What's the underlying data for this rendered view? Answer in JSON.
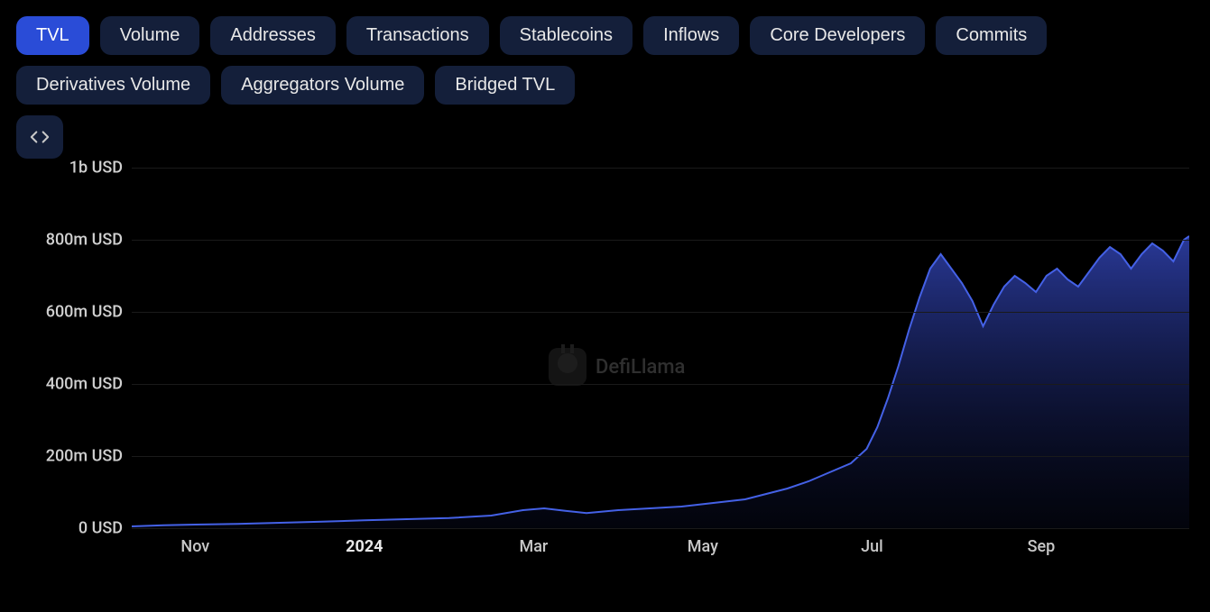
{
  "tabs": {
    "row1": [
      {
        "label": "TVL",
        "active": true
      },
      {
        "label": "Volume",
        "active": false
      },
      {
        "label": "Addresses",
        "active": false
      },
      {
        "label": "Transactions",
        "active": false
      },
      {
        "label": "Stablecoins",
        "active": false
      },
      {
        "label": "Inflows",
        "active": false
      },
      {
        "label": "Core Developers",
        "active": false
      },
      {
        "label": "Commits",
        "active": false
      }
    ],
    "row2": [
      {
        "label": "Derivatives Volume",
        "active": false
      },
      {
        "label": "Aggregators Volume",
        "active": false
      },
      {
        "label": "Bridged TVL",
        "active": false
      }
    ]
  },
  "embed_icon": "code-icon",
  "watermark": {
    "text": "DefiLlama"
  },
  "chart": {
    "type": "area",
    "background_color": "#000000",
    "line_color": "#4461e6",
    "fill_top_color": "#2e3fa8",
    "fill_bottom_color": "#0a1030",
    "line_width": 2,
    "grid_color": "#1a1a1a",
    "text_color": "#d0d0d0",
    "label_fontsize": 18,
    "ylim": [
      0,
      1000
    ],
    "y_ticks": [
      {
        "v": 0,
        "label": "0 USD"
      },
      {
        "v": 200,
        "label": "200m USD"
      },
      {
        "v": 400,
        "label": "400m USD"
      },
      {
        "v": 600,
        "label": "600m USD"
      },
      {
        "v": 800,
        "label": "800m USD"
      },
      {
        "v": 1000,
        "label": "1b USD"
      }
    ],
    "x_ticks": [
      {
        "x": 0.06,
        "label": "Nov",
        "bold": false
      },
      {
        "x": 0.22,
        "label": "2024",
        "bold": true
      },
      {
        "x": 0.38,
        "label": "Mar",
        "bold": false
      },
      {
        "x": 0.54,
        "label": "May",
        "bold": false
      },
      {
        "x": 0.7,
        "label": "Jul",
        "bold": false
      },
      {
        "x": 0.86,
        "label": "Sep",
        "bold": false
      }
    ],
    "series": [
      {
        "x": 0.0,
        "y": 5
      },
      {
        "x": 0.03,
        "y": 8
      },
      {
        "x": 0.06,
        "y": 10
      },
      {
        "x": 0.1,
        "y": 12
      },
      {
        "x": 0.14,
        "y": 15
      },
      {
        "x": 0.18,
        "y": 18
      },
      {
        "x": 0.22,
        "y": 22
      },
      {
        "x": 0.26,
        "y": 25
      },
      {
        "x": 0.3,
        "y": 28
      },
      {
        "x": 0.34,
        "y": 35
      },
      {
        "x": 0.37,
        "y": 50
      },
      {
        "x": 0.39,
        "y": 55
      },
      {
        "x": 0.41,
        "y": 48
      },
      {
        "x": 0.43,
        "y": 42
      },
      {
        "x": 0.46,
        "y": 50
      },
      {
        "x": 0.49,
        "y": 55
      },
      {
        "x": 0.52,
        "y": 60
      },
      {
        "x": 0.55,
        "y": 70
      },
      {
        "x": 0.58,
        "y": 80
      },
      {
        "x": 0.6,
        "y": 95
      },
      {
        "x": 0.62,
        "y": 110
      },
      {
        "x": 0.64,
        "y": 130
      },
      {
        "x": 0.66,
        "y": 155
      },
      {
        "x": 0.68,
        "y": 180
      },
      {
        "x": 0.695,
        "y": 220
      },
      {
        "x": 0.705,
        "y": 280
      },
      {
        "x": 0.715,
        "y": 360
      },
      {
        "x": 0.725,
        "y": 450
      },
      {
        "x": 0.735,
        "y": 550
      },
      {
        "x": 0.745,
        "y": 640
      },
      {
        "x": 0.755,
        "y": 720
      },
      {
        "x": 0.765,
        "y": 760
      },
      {
        "x": 0.775,
        "y": 720
      },
      {
        "x": 0.785,
        "y": 680
      },
      {
        "x": 0.795,
        "y": 630
      },
      {
        "x": 0.805,
        "y": 560
      },
      {
        "x": 0.815,
        "y": 620
      },
      {
        "x": 0.825,
        "y": 670
      },
      {
        "x": 0.835,
        "y": 700
      },
      {
        "x": 0.845,
        "y": 680
      },
      {
        "x": 0.855,
        "y": 655
      },
      {
        "x": 0.865,
        "y": 700
      },
      {
        "x": 0.875,
        "y": 720
      },
      {
        "x": 0.885,
        "y": 690
      },
      {
        "x": 0.895,
        "y": 670
      },
      {
        "x": 0.905,
        "y": 710
      },
      {
        "x": 0.915,
        "y": 750
      },
      {
        "x": 0.925,
        "y": 780
      },
      {
        "x": 0.935,
        "y": 760
      },
      {
        "x": 0.945,
        "y": 720
      },
      {
        "x": 0.955,
        "y": 760
      },
      {
        "x": 0.965,
        "y": 790
      },
      {
        "x": 0.975,
        "y": 770
      },
      {
        "x": 0.985,
        "y": 740
      },
      {
        "x": 0.995,
        "y": 800
      },
      {
        "x": 1.0,
        "y": 810
      }
    ]
  }
}
